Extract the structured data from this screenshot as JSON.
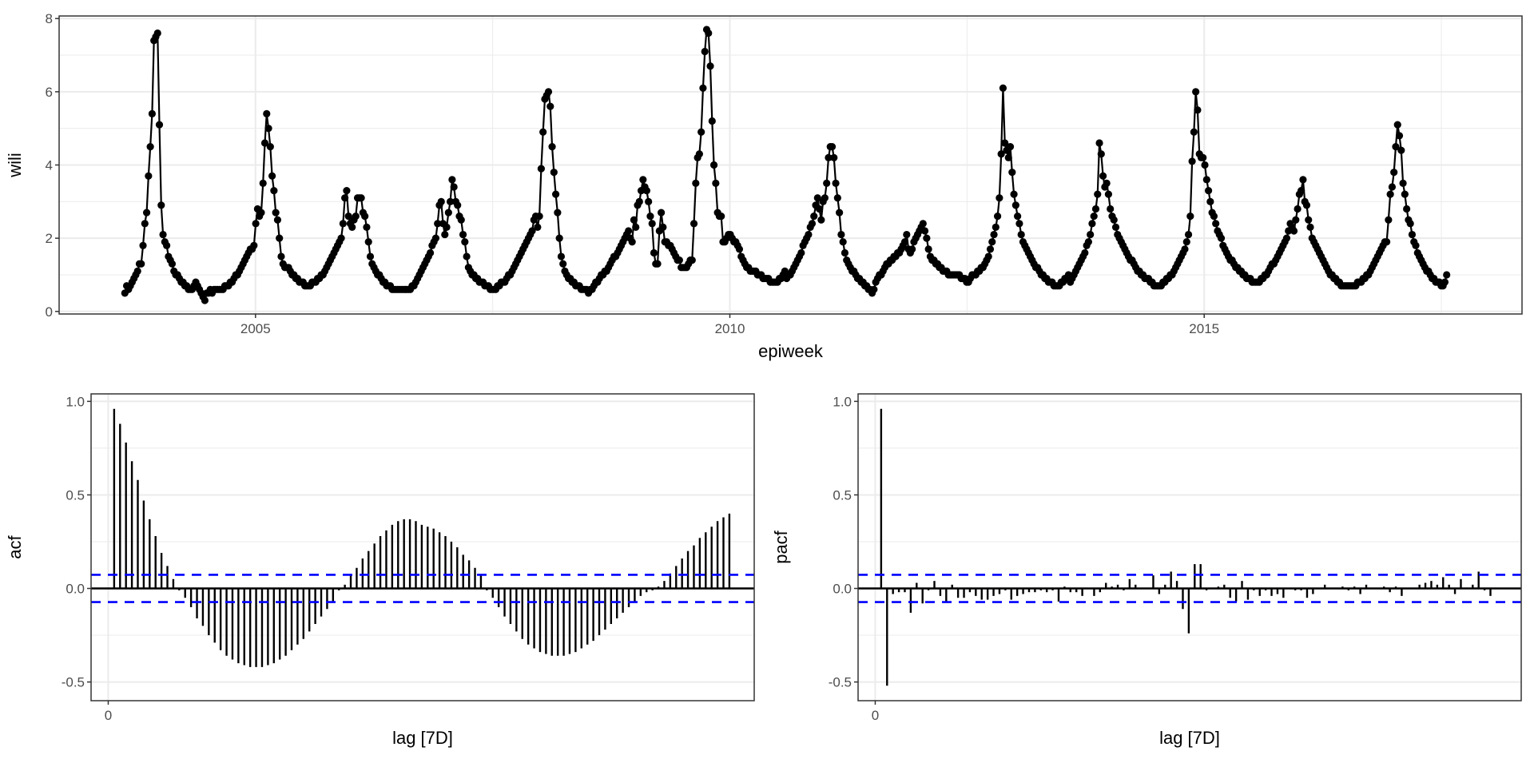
{
  "chart_data": [
    {
      "type": "line",
      "marker": "point",
      "xlabel": "epiweek",
      "ylabel": "wili",
      "x_start_epiweek": "2003 W33",
      "x_interval": "7D",
      "xlim": [
        2002.93,
        2018.35
      ],
      "ylim": [
        -0.07,
        8.07
      ],
      "x_ticks": [
        "2005",
        "2010",
        "2015"
      ],
      "y_ticks": [
        "0",
        "2",
        "4",
        "6",
        "8"
      ],
      "grid": true,
      "color": "#000000",
      "y": [
        0.5,
        0.7,
        0.6,
        0.7,
        0.8,
        0.9,
        1.0,
        1.1,
        1.3,
        1.3,
        1.8,
        2.4,
        2.7,
        3.7,
        4.5,
        5.4,
        7.4,
        7.5,
        7.6,
        5.1,
        2.9,
        2.1,
        1.9,
        1.8,
        1.5,
        1.4,
        1.3,
        1.1,
        1.0,
        1.0,
        0.9,
        0.8,
        0.8,
        0.7,
        0.7,
        0.6,
        0.6,
        0.6,
        0.7,
        0.8,
        0.7,
        0.6,
        0.5,
        0.4,
        0.3,
        0.5,
        0.5,
        0.6,
        0.5,
        0.6,
        0.6,
        0.6,
        0.6,
        0.6,
        0.6,
        0.7,
        0.7,
        0.7,
        0.8,
        0.8,
        0.9,
        1.0,
        1.0,
        1.1,
        1.2,
        1.3,
        1.4,
        1.5,
        1.6,
        1.7,
        1.7,
        1.8,
        2.4,
        2.8,
        2.6,
        2.7,
        3.5,
        4.6,
        5.4,
        5.0,
        4.5,
        3.7,
        3.3,
        2.7,
        2.5,
        2.0,
        1.5,
        1.3,
        1.2,
        1.2,
        1.2,
        1.1,
        1.0,
        1.0,
        0.9,
        0.9,
        0.8,
        0.8,
        0.8,
        0.7,
        0.7,
        0.7,
        0.7,
        0.8,
        0.8,
        0.8,
        0.9,
        0.9,
        1.0,
        1.0,
        1.1,
        1.2,
        1.3,
        1.4,
        1.5,
        1.6,
        1.7,
        1.8,
        1.9,
        2.0,
        2.4,
        3.1,
        3.3,
        2.6,
        2.4,
        2.3,
        2.5,
        2.6,
        3.1,
        3.1,
        3.1,
        2.7,
        2.6,
        2.3,
        1.9,
        1.5,
        1.3,
        1.2,
        1.1,
        1.0,
        1.0,
        0.9,
        0.8,
        0.8,
        0.7,
        0.7,
        0.7,
        0.6,
        0.6,
        0.6,
        0.6,
        0.6,
        0.6,
        0.6,
        0.6,
        0.6,
        0.6,
        0.6,
        0.7,
        0.7,
        0.8,
        0.9,
        1.0,
        1.1,
        1.2,
        1.3,
        1.4,
        1.5,
        1.6,
        1.8,
        1.9,
        2.0,
        2.4,
        2.9,
        3.0,
        2.4,
        2.1,
        2.3,
        2.7,
        3.0,
        3.6,
        3.4,
        3.0,
        2.9,
        2.6,
        2.5,
        2.1,
        1.9,
        1.5,
        1.2,
        1.1,
        1.0,
        1.0,
        0.9,
        0.9,
        0.8,
        0.8,
        0.8,
        0.7,
        0.7,
        0.7,
        0.6,
        0.6,
        0.6,
        0.6,
        0.7,
        0.7,
        0.8,
        0.8,
        0.8,
        0.9,
        1.0,
        1.0,
        1.1,
        1.2,
        1.3,
        1.4,
        1.5,
        1.6,
        1.7,
        1.8,
        1.9,
        2.0,
        2.1,
        2.2,
        2.5,
        2.6,
        2.3,
        2.6,
        3.9,
        4.9,
        5.8,
        5.9,
        6.0,
        5.6,
        4.5,
        3.8,
        3.2,
        2.7,
        2.0,
        1.5,
        1.3,
        1.1,
        1.0,
        0.9,
        0.9,
        0.8,
        0.8,
        0.7,
        0.7,
        0.7,
        0.6,
        0.6,
        0.6,
        0.6,
        0.5,
        0.6,
        0.6,
        0.7,
        0.8,
        0.8,
        0.9,
        1.0,
        1.0,
        1.1,
        1.1,
        1.2,
        1.3,
        1.4,
        1.5,
        1.5,
        1.6,
        1.7,
        1.8,
        1.9,
        2.0,
        2.1,
        2.2,
        2.0,
        1.9,
        2.5,
        2.3,
        2.9,
        3.0,
        3.3,
        3.6,
        3.4,
        3.3,
        3.0,
        2.6,
        2.4,
        1.6,
        1.3,
        1.3,
        2.2,
        2.7,
        2.3,
        1.9,
        1.9,
        1.8,
        1.8,
        1.7,
        1.6,
        1.5,
        1.4,
        1.4,
        1.2,
        1.2,
        1.2,
        1.2,
        1.3,
        1.4,
        1.4,
        2.4,
        3.5,
        4.2,
        4.3,
        4.9,
        6.1,
        7.1,
        7.7,
        7.6,
        6.7,
        5.2,
        4.0,
        3.5,
        2.7,
        2.6,
        2.6,
        1.9,
        1.9,
        2.0,
        2.1,
        2.1,
        2.0,
        1.9,
        1.9,
        1.8,
        1.7,
        1.5,
        1.4,
        1.3,
        1.2,
        1.2,
        1.1,
        1.1,
        1.1,
        1.1,
        1.0,
        1.0,
        1.0,
        0.9,
        0.9,
        0.9,
        0.9,
        0.8,
        0.8,
        0.8,
        0.8,
        0.8,
        0.9,
        0.9,
        1.0,
        1.1,
        0.9,
        1.0,
        1.0,
        1.1,
        1.2,
        1.3,
        1.4,
        1.5,
        1.6,
        1.8,
        1.9,
        2.0,
        2.1,
        2.3,
        2.4,
        2.6,
        2.9,
        3.1,
        2.8,
        2.5,
        3.0,
        3.1,
        3.5,
        4.2,
        4.5,
        4.5,
        4.2,
        3.5,
        3.1,
        2.7,
        2.1,
        1.9,
        1.6,
        1.4,
        1.3,
        1.2,
        1.1,
        1.1,
        1.0,
        0.9,
        0.9,
        0.8,
        0.8,
        0.7,
        0.7,
        0.6,
        0.6,
        0.5,
        0.6,
        0.8,
        0.9,
        1.0,
        1.0,
        1.1,
        1.2,
        1.3,
        1.3,
        1.4,
        1.4,
        1.5,
        1.5,
        1.6,
        1.6,
        1.7,
        1.8,
        1.9,
        2.1,
        1.7,
        1.6,
        1.7,
        1.9,
        2.0,
        2.1,
        2.2,
        2.3,
        2.4,
        2.2,
        2.0,
        1.7,
        1.5,
        1.4,
        1.4,
        1.3,
        1.3,
        1.2,
        1.2,
        1.1,
        1.1,
        1.1,
        1.0,
        1.0,
        1.0,
        1.0,
        1.0,
        1.0,
        1.0,
        0.9,
        0.9,
        0.9,
        0.8,
        0.8,
        0.9,
        1.0,
        1.0,
        1.0,
        1.1,
        1.1,
        1.2,
        1.2,
        1.3,
        1.4,
        1.5,
        1.7,
        1.9,
        2.1,
        2.3,
        2.6,
        3.1,
        4.3,
        6.1,
        4.6,
        4.4,
        4.2,
        4.5,
        3.8,
        3.2,
        2.9,
        2.6,
        2.4,
        2.1,
        1.9,
        1.8,
        1.7,
        1.6,
        1.5,
        1.4,
        1.3,
        1.2,
        1.2,
        1.1,
        1.0,
        1.0,
        0.9,
        0.9,
        0.8,
        0.8,
        0.8,
        0.7,
        0.7,
        0.7,
        0.7,
        0.8,
        0.8,
        0.9,
        0.9,
        1.0,
        0.8,
        0.9,
        1.0,
        1.1,
        1.2,
        1.3,
        1.4,
        1.5,
        1.6,
        1.8,
        1.9,
        2.1,
        2.4,
        2.6,
        2.8,
        3.2,
        4.6,
        4.3,
        3.7,
        3.4,
        3.5,
        3.2,
        2.8,
        2.6,
        2.5,
        2.3,
        2.1,
        2.0,
        1.9,
        1.8,
        1.7,
        1.6,
        1.5,
        1.4,
        1.4,
        1.3,
        1.2,
        1.1,
        1.1,
        1.0,
        1.0,
        0.9,
        0.9,
        0.9,
        0.8,
        0.8,
        0.7,
        0.7,
        0.7,
        0.7,
        0.7,
        0.8,
        0.8,
        0.9,
        0.9,
        1.0,
        1.0,
        1.1,
        1.2,
        1.3,
        1.4,
        1.5,
        1.6,
        1.7,
        1.9,
        2.1,
        2.6,
        4.1,
        4.9,
        6.0,
        5.5,
        4.3,
        4.2,
        4.2,
        4.0,
        3.6,
        3.3,
        3.0,
        2.7,
        2.6,
        2.4,
        2.2,
        2.1,
        2.0,
        1.8,
        1.7,
        1.6,
        1.5,
        1.4,
        1.4,
        1.3,
        1.2,
        1.2,
        1.1,
        1.1,
        1.0,
        1.0,
        0.9,
        0.9,
        0.9,
        0.8,
        0.8,
        0.8,
        0.8,
        0.8,
        0.9,
        0.9,
        1.0,
        1.0,
        1.1,
        1.2,
        1.3,
        1.3,
        1.4,
        1.5,
        1.6,
        1.7,
        1.8,
        1.9,
        2.0,
        2.2,
        2.4,
        2.3,
        2.2,
        2.5,
        2.8,
        3.2,
        3.3,
        3.6,
        3.0,
        2.9,
        2.5,
        2.3,
        2.0,
        1.9,
        1.8,
        1.7,
        1.6,
        1.5,
        1.4,
        1.3,
        1.2,
        1.1,
        1.0,
        1.0,
        0.9,
        0.9,
        0.8,
        0.8,
        0.7,
        0.7,
        0.7,
        0.7,
        0.7,
        0.7,
        0.7,
        0.7,
        0.7,
        0.8,
        0.8,
        0.8,
        0.9,
        0.9,
        1.0,
        1.0,
        1.1,
        1.2,
        1.3,
        1.4,
        1.5,
        1.6,
        1.7,
        1.8,
        1.9,
        1.9,
        2.5,
        3.2,
        3.4,
        3.8,
        4.5,
        5.1,
        4.8,
        4.4,
        3.5,
        3.2,
        2.8,
        2.5,
        2.4,
        2.1,
        1.9,
        1.8,
        1.6,
        1.5,
        1.4,
        1.3,
        1.2,
        1.1,
        1.1,
        1.0,
        0.9,
        0.9,
        0.8,
        0.8,
        0.8,
        0.7,
        0.7,
        0.8,
        1.0
      ]
    },
    {
      "type": "bar",
      "style": "lollipop-segment",
      "xlabel": "lag [7D]",
      "ylabel": "acf",
      "xlim": [
        -2.9,
        109.2
      ],
      "ylim": [
        -0.6,
        1.04
      ],
      "x_ticks": [
        "0"
      ],
      "y_ticks": [
        "-0.5",
        "0.0",
        "0.5",
        "1.0"
      ],
      "grid": true,
      "confidence_bound": 0.073,
      "confidence_color": "#0000FF",
      "lag_start": 1,
      "values": [
        0.96,
        0.88,
        0.78,
        0.68,
        0.58,
        0.47,
        0.37,
        0.28,
        0.19,
        0.12,
        0.05,
        -0.01,
        -0.05,
        -0.1,
        -0.16,
        -0.2,
        -0.25,
        -0.29,
        -0.33,
        -0.36,
        -0.38,
        -0.4,
        -0.41,
        -0.42,
        -0.42,
        -0.42,
        -0.41,
        -0.4,
        -0.38,
        -0.36,
        -0.33,
        -0.3,
        -0.27,
        -0.23,
        -0.19,
        -0.15,
        -0.11,
        -0.07,
        -0.01,
        0.02,
        0.07,
        0.11,
        0.16,
        0.2,
        0.24,
        0.28,
        0.31,
        0.34,
        0.36,
        0.37,
        0.37,
        0.36,
        0.34,
        0.33,
        0.32,
        0.3,
        0.28,
        0.25,
        0.22,
        0.18,
        0.15,
        0.11,
        0.07,
        -0.01,
        -0.05,
        -0.1,
        -0.15,
        -0.19,
        -0.23,
        -0.27,
        -0.3,
        -0.32,
        -0.34,
        -0.35,
        -0.36,
        -0.36,
        -0.36,
        -0.35,
        -0.34,
        -0.32,
        -0.3,
        -0.28,
        -0.25,
        -0.22,
        -0.19,
        -0.16,
        -0.13,
        -0.1,
        -0.07,
        -0.04,
        -0.02,
        -0.01,
        0.01,
        0.04,
        0.08,
        0.12,
        0.16,
        0.2,
        0.23,
        0.27,
        0.3,
        0.33,
        0.36,
        0.38,
        0.4
      ]
    },
    {
      "type": "bar",
      "style": "lollipop-segment",
      "xlabel": "lag [7D]",
      "ylabel": "pacf",
      "xlim": [
        -2.9,
        109.2
      ],
      "ylim": [
        -0.6,
        1.04
      ],
      "x_ticks": [
        "0"
      ],
      "y_ticks": [
        "-0.5",
        "0.0",
        "0.5",
        "1.0"
      ],
      "grid": true,
      "confidence_bound": 0.073,
      "confidence_color": "#0000FF",
      "lag_start": 1,
      "values": [
        0.96,
        -0.52,
        -0.03,
        -0.02,
        -0.02,
        -0.13,
        0.03,
        -0.08,
        -0.01,
        0.04,
        -0.04,
        -0.07,
        0.02,
        -0.05,
        -0.05,
        -0.02,
        -0.04,
        -0.06,
        -0.06,
        -0.04,
        -0.03,
        -0.01,
        -0.06,
        -0.04,
        -0.03,
        -0.02,
        -0.02,
        -0.01,
        -0.02,
        -0.01,
        -0.07,
        0.01,
        -0.02,
        -0.02,
        -0.04,
        0.0,
        -0.04,
        -0.02,
        0.03,
        0.01,
        0.02,
        -0.01,
        0.05,
        0.02,
        0.0,
        0.0,
        0.07,
        -0.03,
        0.02,
        0.09,
        0.04,
        -0.11,
        -0.24,
        0.13,
        0.13,
        -0.01,
        0.0,
        0.01,
        0.02,
        -0.05,
        -0.07,
        0.04,
        -0.06,
        -0.01,
        -0.04,
        -0.01,
        -0.04,
        -0.03,
        -0.05,
        0.0,
        -0.01,
        -0.01,
        -0.05,
        -0.03,
        0.0,
        0.02,
        0.0,
        0.0,
        0.01,
        -0.01,
        0.01,
        -0.03,
        0.02,
        0.0,
        0.0,
        0.01,
        -0.02,
        0.01,
        -0.04,
        0.0,
        0.0,
        0.02,
        0.03,
        0.04,
        0.02,
        0.06,
        0.02,
        -0.03,
        0.05,
        0.0,
        0.02,
        0.09,
        -0.01,
        -0.04
      ]
    }
  ]
}
